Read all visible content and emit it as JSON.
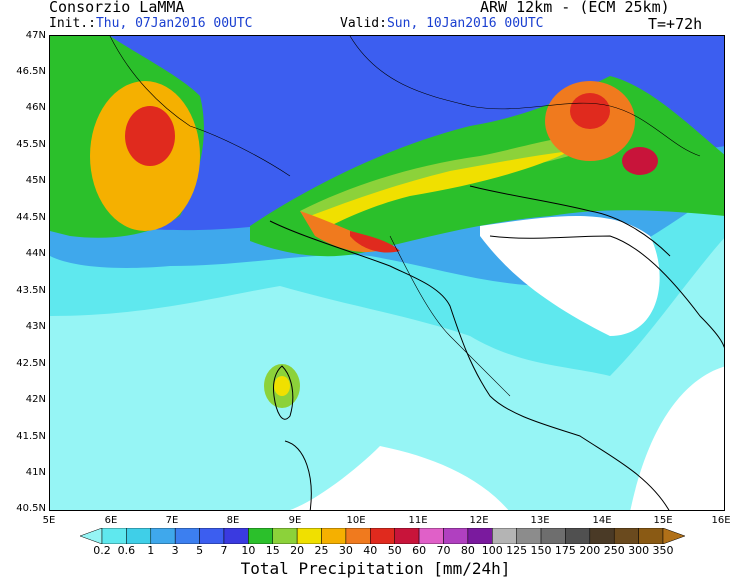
{
  "header": {
    "org": "Consorzio LaMMA",
    "model": "ARW 12km - (ECM 25km)",
    "init_label": "Init.:",
    "init_value": "Thu, 07Jan2016 00UTC",
    "valid_label": "Valid:",
    "valid_value": "Sun, 10Jan2016 00UTC",
    "lead": "T=+72h"
  },
  "map": {
    "lat_labels": [
      "47N",
      "46.5N",
      "46N",
      "45.5N",
      "45N",
      "44.5N",
      "44N",
      "43.5N",
      "43N",
      "42.5N",
      "42N",
      "41.5N",
      "41N",
      "40.5N"
    ],
    "lon_labels": [
      "5E",
      "6E",
      "7E",
      "8E",
      "9E",
      "10E",
      "11E",
      "12E",
      "13E",
      "14E",
      "15E",
      "16E"
    ],
    "background_color": "#ffffff"
  },
  "colorbar": {
    "labels": [
      "0.2",
      "0.6",
      "1",
      "3",
      "5",
      "7",
      "10",
      "15",
      "20",
      "25",
      "30",
      "40",
      "50",
      "60",
      "70",
      "80",
      "100",
      "125",
      "150",
      "175",
      "200",
      "250",
      "300",
      "350"
    ],
    "colors": [
      "#96f5f5",
      "#5fe8ee",
      "#3fcfe8",
      "#3fa8ec",
      "#3c7ff0",
      "#3c5ef0",
      "#3a3ae0",
      "#2bc02b",
      "#8cd23a",
      "#f0e000",
      "#f5b000",
      "#f07a1e",
      "#e02a1e",
      "#c8143a",
      "#e060c8",
      "#b040c0",
      "#7a1a9e",
      "#b4b4b4",
      "#8c8c8c",
      "#6e6e6e",
      "#505050",
      "#4a3a26",
      "#6a4a1e",
      "#8a5a14",
      "#b07018"
    ],
    "title": "Total Precipitation [mm/24h]"
  }
}
